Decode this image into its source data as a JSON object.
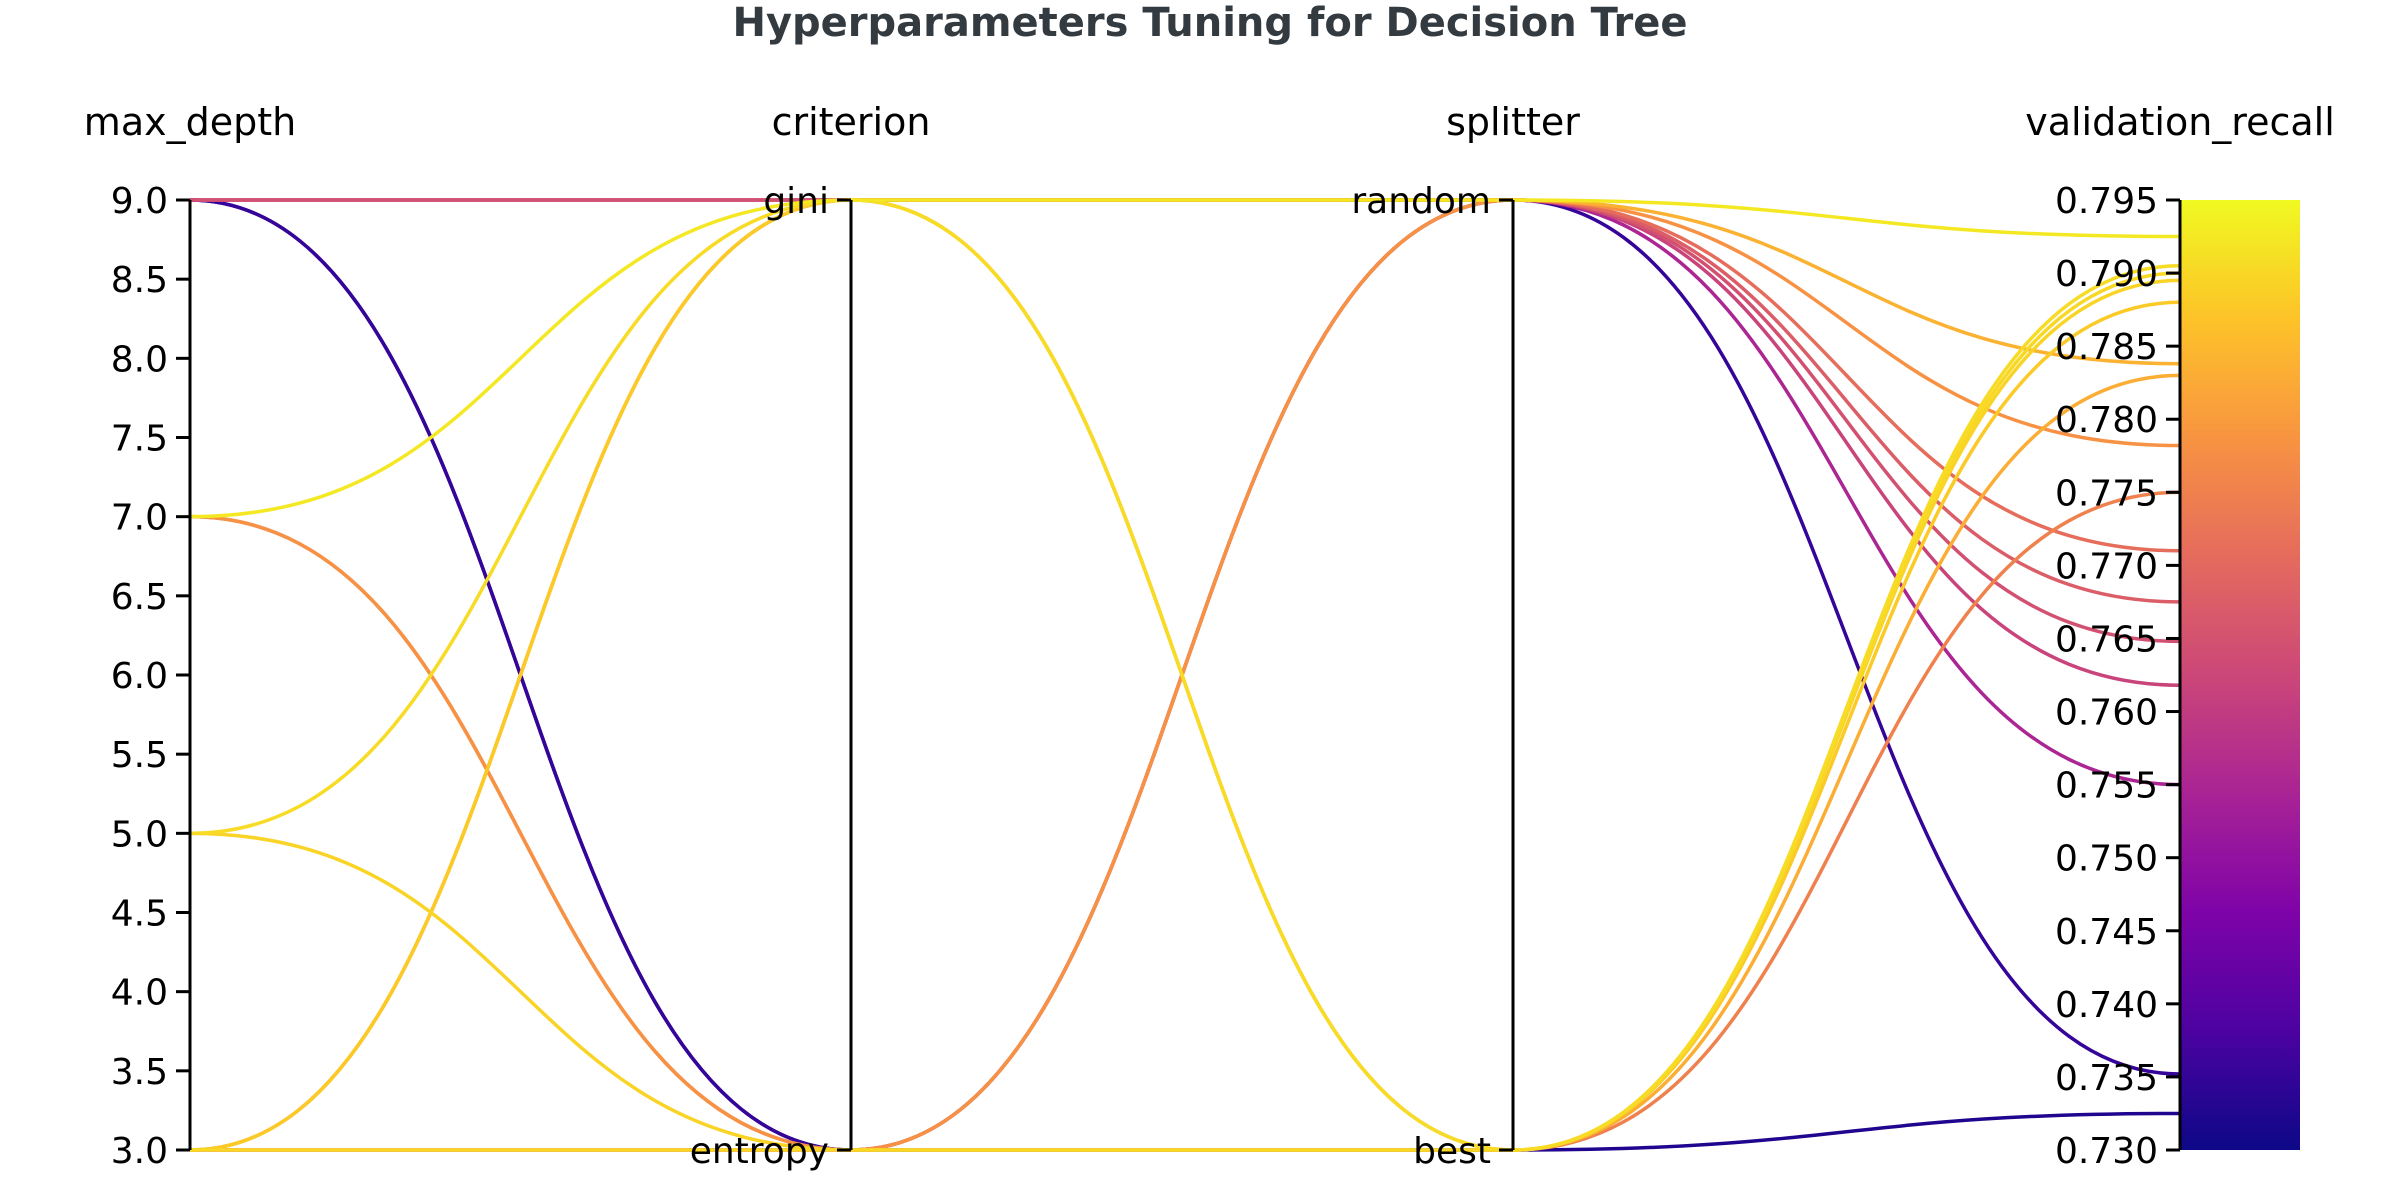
{
  "chart_data": {
    "type": "parallel_coordinates",
    "title": "Hyperparameters Tuning for Decision Tree",
    "colormap": "plasma",
    "axes": [
      {
        "name": "max_depth",
        "kind": "numeric",
        "range": [
          3.0,
          9.0
        ],
        "ticks": [
          "3.0",
          "3.5",
          "4.0",
          "4.5",
          "5.0",
          "5.5",
          "6.0",
          "6.5",
          "7.0",
          "7.5",
          "8.0",
          "8.5",
          "9.0"
        ]
      },
      {
        "name": "criterion",
        "kind": "categorical",
        "categories": [
          "entropy",
          "gini"
        ]
      },
      {
        "name": "splitter",
        "kind": "categorical",
        "categories": [
          "best",
          "random"
        ]
      },
      {
        "name": "validation_recall",
        "kind": "numeric",
        "range": [
          0.73,
          0.795
        ],
        "ticks": [
          "0.730",
          "0.735",
          "0.740",
          "0.745",
          "0.750",
          "0.755",
          "0.760",
          "0.765",
          "0.770",
          "0.775",
          "0.780",
          "0.785",
          "0.790",
          "0.795"
        ]
      }
    ],
    "trials": [
      {
        "max_depth": 9,
        "criterion": "gini",
        "splitter": "random",
        "validation_recall": 0.7648
      },
      {
        "max_depth": 9,
        "criterion": "gini",
        "splitter": "random",
        "validation_recall": 0.7618
      },
      {
        "max_depth": 9,
        "criterion": "gini",
        "splitter": "random",
        "validation_recall": 0.755
      },
      {
        "max_depth": 9,
        "criterion": "entropy",
        "splitter": "random",
        "validation_recall": 0.7352
      },
      {
        "max_depth": 9,
        "criterion": "entropy",
        "splitter": "best",
        "validation_recall": 0.7325
      },
      {
        "max_depth": 7,
        "criterion": "gini",
        "splitter": "random",
        "validation_recall": 0.7925
      },
      {
        "max_depth": 7,
        "criterion": "entropy",
        "splitter": "random",
        "validation_recall": 0.7782
      },
      {
        "max_depth": 7,
        "criterion": "entropy",
        "splitter": "best",
        "validation_recall": 0.775
      },
      {
        "max_depth": 5,
        "criterion": "gini",
        "splitter": "best",
        "validation_recall": 0.7905
      },
      {
        "max_depth": 5,
        "criterion": "entropy",
        "splitter": "best",
        "validation_recall": 0.7895
      },
      {
        "max_depth": 3,
        "criterion": "gini",
        "splitter": "random",
        "validation_recall": 0.7838
      },
      {
        "max_depth": 3,
        "criterion": "gini",
        "splitter": "best",
        "validation_recall": 0.783
      },
      {
        "max_depth": 3,
        "criterion": "entropy",
        "splitter": "best",
        "validation_recall": 0.79
      },
      {
        "max_depth": 3,
        "criterion": "entropy",
        "splitter": "random",
        "validation_recall": 0.771
      },
      {
        "max_depth": 3,
        "criterion": "entropy",
        "splitter": "random",
        "validation_recall": 0.7675
      },
      {
        "max_depth": 3,
        "criterion": "gini",
        "splitter": "best",
        "validation_recall": 0.788
      }
    ]
  }
}
